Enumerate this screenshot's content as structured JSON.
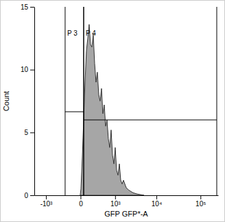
{
  "chart_data": {
    "type": "area",
    "xlabel": "GFP GFP*-A",
    "ylabel": "Count",
    "log": "x",
    "xlim": [
      -2000,
      250000
    ],
    "xticks": [
      {
        "value": -1000,
        "label": "-10³"
      },
      0,
      {
        "value": 1000,
        "label": "10³"
      },
      {
        "value": 10000,
        "label": "10⁴"
      },
      {
        "value": 100000,
        "label": "10⁵"
      }
    ],
    "ylim": [
      0,
      15
    ],
    "yticks": [
      0,
      5,
      10,
      15
    ],
    "x": [
      -4,
      4,
      19,
      35,
      52,
      71,
      91,
      112,
      135,
      160,
      186,
      215,
      246,
      278,
      314,
      351,
      392,
      436,
      483,
      533,
      587,
      645,
      707,
      775,
      847,
      924,
      1006,
      1095,
      1192,
      1294,
      1404,
      1522,
      1649,
      1933,
      2258,
      2842,
      3568,
      5180
    ],
    "values": [
      0,
      0.5,
      3,
      6,
      9,
      11.5,
      12.5,
      13.6,
      12,
      11.8,
      12.8,
      10.5,
      9,
      9.8,
      8,
      7.5,
      8.5,
      6.5,
      7.2,
      5.5,
      6,
      4.5,
      3.8,
      5.2,
      3.2,
      2.5,
      3.8,
      2,
      1.6,
      2.5,
      1.2,
      0.9,
      1.2,
      0.6,
      0.4,
      0.2,
      0.1,
      0
    ],
    "color": "#a6a6a6",
    "gates": [
      {
        "name": "P 3",
        "range": [
          -245,
          35
        ],
        "y": 6.65
      },
      {
        "name": "P 4",
        "range": [
          35,
          232800
        ],
        "y": 6.0
      }
    ]
  }
}
